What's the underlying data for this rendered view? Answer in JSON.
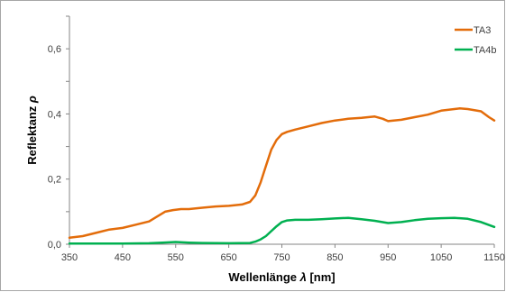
{
  "chart_data": {
    "type": "line",
    "xlabel": "Wellenlänge λ [nm]",
    "ylabel": "Reflektanz ρ",
    "xlim": [
      350,
      1150
    ],
    "ylim": [
      0,
      0.7
    ],
    "x_ticks": [
      "350",
      "450",
      "550",
      "650",
      "750",
      "850",
      "950",
      "1050",
      "1150"
    ],
    "y_ticks": [
      "0,0",
      "0,2",
      "0,4",
      "0,6"
    ],
    "grid": false,
    "legend_position": "top-right",
    "series": [
      {
        "name": "TA3",
        "color": "#E36C0A",
        "x": [
          350,
          375,
          400,
          425,
          450,
          475,
          500,
          515,
          530,
          545,
          560,
          575,
          600,
          625,
          650,
          675,
          690,
          700,
          710,
          720,
          730,
          740,
          750,
          760,
          775,
          800,
          825,
          850,
          875,
          900,
          925,
          940,
          950,
          975,
          1000,
          1025,
          1050,
          1075,
          1085,
          1100,
          1125,
          1140,
          1150
        ],
        "y": [
          0.02,
          0.025,
          0.035,
          0.045,
          0.05,
          0.06,
          0.07,
          0.085,
          0.1,
          0.105,
          0.108,
          0.108,
          0.112,
          0.116,
          0.118,
          0.122,
          0.13,
          0.15,
          0.19,
          0.24,
          0.29,
          0.32,
          0.338,
          0.345,
          0.352,
          0.362,
          0.372,
          0.38,
          0.385,
          0.388,
          0.392,
          0.385,
          0.378,
          0.382,
          0.39,
          0.398,
          0.41,
          0.415,
          0.417,
          0.415,
          0.408,
          0.39,
          0.38
        ]
      },
      {
        "name": "TA4b",
        "color": "#00B050",
        "x": [
          350,
          400,
          450,
          500,
          525,
          550,
          575,
          600,
          650,
          690,
          700,
          710,
          720,
          730,
          740,
          750,
          760,
          775,
          800,
          825,
          850,
          875,
          900,
          925,
          950,
          975,
          1000,
          1025,
          1050,
          1075,
          1100,
          1125,
          1150
        ],
        "y": [
          0.002,
          0.002,
          0.002,
          0.003,
          0.005,
          0.007,
          0.005,
          0.004,
          0.003,
          0.004,
          0.008,
          0.015,
          0.025,
          0.04,
          0.055,
          0.068,
          0.073,
          0.075,
          0.075,
          0.077,
          0.079,
          0.081,
          0.077,
          0.072,
          0.065,
          0.068,
          0.074,
          0.078,
          0.08,
          0.081,
          0.078,
          0.068,
          0.053
        ]
      }
    ]
  }
}
